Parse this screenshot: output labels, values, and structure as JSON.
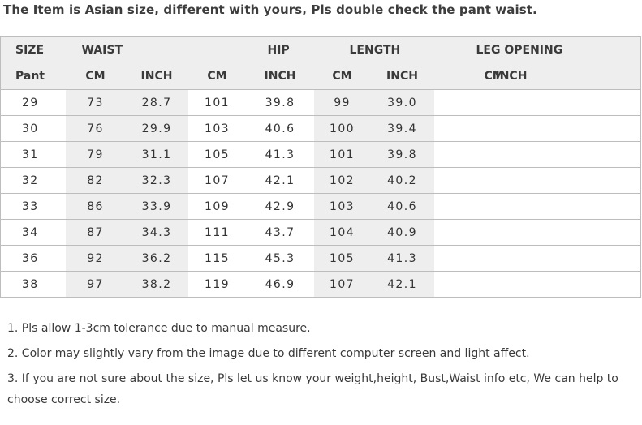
{
  "title": "The Item is Asian size, different with yours, Pls double check the pant waist.",
  "table": {
    "group_headers": {
      "size": "SIZE",
      "waist": "WAIST",
      "hip": "HIP",
      "length": "LENGTH",
      "leg_opening": "LEG OPENING"
    },
    "unit_headers": {
      "size": "Pant",
      "waist_cm": "CM",
      "waist_inch": "INCH",
      "hip_cm": "CM",
      "hip_inch": "INCH",
      "length_cm": "CM",
      "length_inch": "INCH",
      "leg_cm": "CM",
      "leg_inch": "INCH"
    },
    "rows": [
      {
        "size": "29",
        "waist_cm": "73",
        "waist_inch": "28.7",
        "hip_cm": "101",
        "hip_inch": "39.8",
        "length_cm": "99",
        "length_inch": "39.0"
      },
      {
        "size": "30",
        "waist_cm": "76",
        "waist_inch": "29.9",
        "hip_cm": "103",
        "hip_inch": "40.6",
        "length_cm": "100",
        "length_inch": "39.4"
      },
      {
        "size": "31",
        "waist_cm": "79",
        "waist_inch": "31.1",
        "hip_cm": "105",
        "hip_inch": "41.3",
        "length_cm": "101",
        "length_inch": "39.8"
      },
      {
        "size": "32",
        "waist_cm": "82",
        "waist_inch": "32.3",
        "hip_cm": "107",
        "hip_inch": "42.1",
        "length_cm": "102",
        "length_inch": "40.2"
      },
      {
        "size": "33",
        "waist_cm": "86",
        "waist_inch": "33.9",
        "hip_cm": "109",
        "hip_inch": "42.9",
        "length_cm": "103",
        "length_inch": "40.6"
      },
      {
        "size": "34",
        "waist_cm": "87",
        "waist_inch": "34.3",
        "hip_cm": "111",
        "hip_inch": "43.7",
        "length_cm": "104",
        "length_inch": "40.9"
      },
      {
        "size": "36",
        "waist_cm": "92",
        "waist_inch": "36.2",
        "hip_cm": "115",
        "hip_inch": "45.3",
        "length_cm": "105",
        "length_inch": "41.3"
      },
      {
        "size": "38",
        "waist_cm": "97",
        "waist_inch": "38.2",
        "hip_cm": "119",
        "hip_inch": "46.9",
        "length_cm": "107",
        "length_inch": "42.1"
      }
    ]
  },
  "notes": [
    "1.  Pls allow 1-3cm tolerance due to manual measure.",
    "2.  Color may slightly vary from the image due to different computer screen and light affect.",
    "3.  If you are not sure about the size, Pls let us know your weight,height, Bust,Waist info etc, We can help to choose correct size."
  ],
  "colors": {
    "header_bg": "#eeeeee",
    "shade_bg": "#eeeeee",
    "border": "#bdbdbd",
    "text": "#333333"
  }
}
